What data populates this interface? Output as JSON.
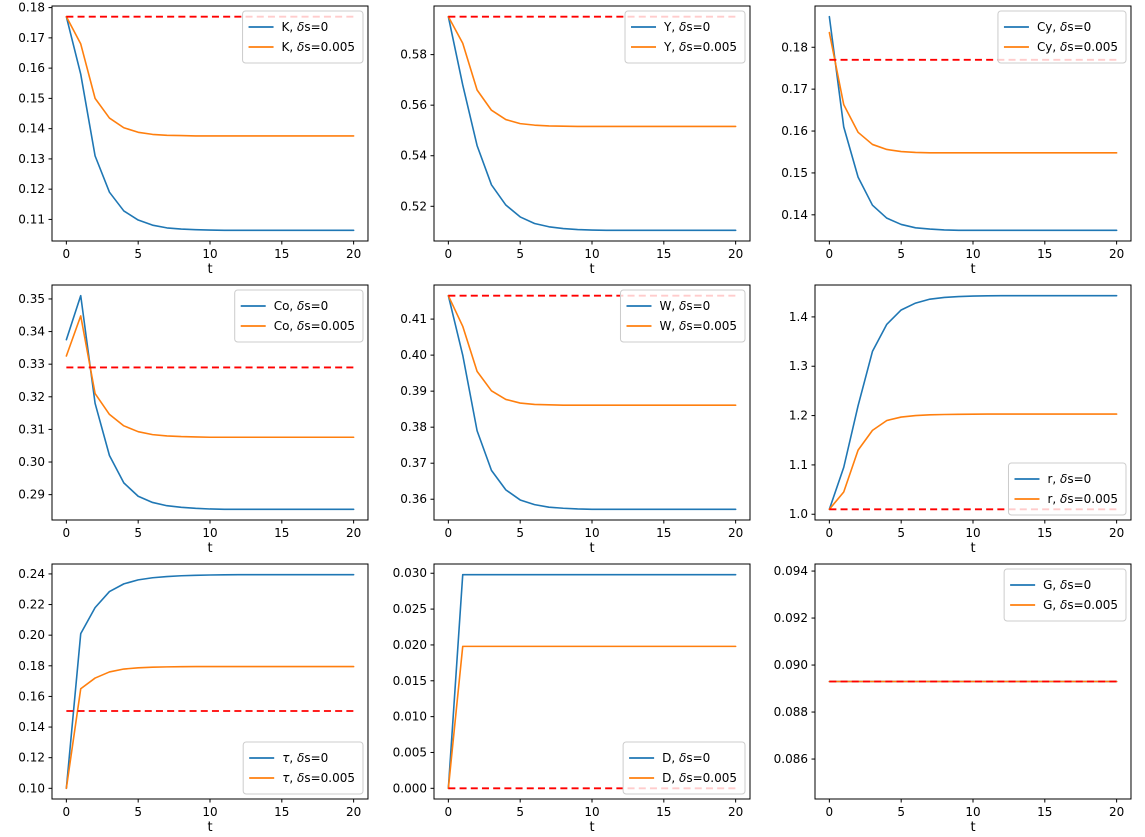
{
  "figure": {
    "background": "#ffffff",
    "text_color": "#000000",
    "spine_color": "#000000",
    "legend_border_color": "#cccccc",
    "legend_bg": "#ffffff",
    "legend_bg_alpha": 0.8
  },
  "chart_data": [
    {
      "type": "line",
      "variable": "K",
      "xlabel": "t",
      "xlim": [
        -1,
        21
      ],
      "xticks": [
        0,
        5,
        10,
        15,
        20
      ],
      "xtick_labels": [
        "0",
        "5",
        "10",
        "15",
        "20"
      ],
      "ylim": [
        0.10287,
        0.18053
      ],
      "yticks": [
        0.11,
        0.12,
        0.13,
        0.14,
        0.15,
        0.16,
        0.17,
        0.18
      ],
      "ytick_labels": [
        "0.11",
        "0.12",
        "0.13",
        "0.14",
        "0.15",
        "0.16",
        "0.17",
        "0.18"
      ],
      "x": [
        0,
        1,
        2,
        3,
        4,
        5,
        6,
        7,
        8,
        9,
        10,
        11,
        12,
        13,
        14,
        15,
        16,
        17,
        18,
        19,
        20
      ],
      "series": [
        {
          "name": "K, δs=0",
          "color": "#1f77b4",
          "values": [
            0.177,
            0.158,
            0.131,
            0.119,
            0.1128,
            0.1098,
            0.1081,
            0.1072,
            0.1068,
            0.1066,
            0.1065,
            0.1064,
            0.1064,
            0.1064,
            0.1064,
            0.1064,
            0.1064,
            0.1064,
            0.1064,
            0.1064,
            0.1064
          ]
        },
        {
          "name": "K, δs=0.005",
          "color": "#ff7f0e",
          "values": [
            0.177,
            0.168,
            0.15,
            0.1435,
            0.1403,
            0.1388,
            0.1381,
            0.1378,
            0.1377,
            0.1376,
            0.1376,
            0.1376,
            0.1376,
            0.1376,
            0.1376,
            0.1376,
            0.1376,
            0.1376,
            0.1376,
            0.1376,
            0.1376
          ]
        }
      ],
      "ref_line": {
        "y": 0.177,
        "color": "#ff0000",
        "linestyle": "dashed",
        "x_start": 0,
        "x_end": 20
      },
      "legend_loc": "upper right"
    },
    {
      "type": "line",
      "variable": "Y",
      "xlabel": "t",
      "xlim": [
        -1,
        21
      ],
      "xticks": [
        0,
        5,
        10,
        15,
        20
      ],
      "xtick_labels": [
        "0",
        "5",
        "10",
        "15",
        "20"
      ],
      "ylim": [
        0.506275,
        0.599225
      ],
      "yticks": [
        0.52,
        0.54,
        0.56,
        0.58
      ],
      "ytick_labels": [
        "0.52",
        "0.54",
        "0.56",
        "0.58"
      ],
      "x": [
        0,
        1,
        2,
        3,
        4,
        5,
        6,
        7,
        8,
        9,
        10,
        11,
        12,
        13,
        14,
        15,
        16,
        17,
        18,
        19,
        20
      ],
      "series": [
        {
          "name": "Y, δs=0",
          "color": "#1f77b4",
          "values": [
            0.595,
            0.568,
            0.544,
            0.5285,
            0.5205,
            0.5158,
            0.5132,
            0.5119,
            0.5112,
            0.5108,
            0.5106,
            0.5105,
            0.5105,
            0.5105,
            0.5105,
            0.5105,
            0.5105,
            0.5105,
            0.5105,
            0.5105,
            0.5105
          ]
        },
        {
          "name": "Y, δs=0.005",
          "color": "#ff7f0e",
          "values": [
            0.595,
            0.5845,
            0.566,
            0.558,
            0.5543,
            0.5527,
            0.5521,
            0.5518,
            0.5517,
            0.5516,
            0.5516,
            0.5516,
            0.5516,
            0.5516,
            0.5516,
            0.5516,
            0.5516,
            0.5516,
            0.5516,
            0.5516,
            0.5516
          ]
        }
      ],
      "ref_line": {
        "y": 0.595,
        "color": "#ff0000",
        "linestyle": "dashed",
        "x_start": 0,
        "x_end": 20
      },
      "legend_loc": "upper right"
    },
    {
      "type": "line",
      "variable": "Cy",
      "xlabel": "t",
      "xlim": [
        -1,
        21
      ],
      "xticks": [
        0,
        5,
        10,
        15,
        20
      ],
      "xtick_labels": [
        "0",
        "5",
        "10",
        "15",
        "20"
      ],
      "ylim": [
        0.13375,
        0.18985
      ],
      "yticks": [
        0.14,
        0.15,
        0.16,
        0.17,
        0.18
      ],
      "ytick_labels": [
        "0.14",
        "0.15",
        "0.16",
        "0.17",
        "0.18"
      ],
      "x": [
        0,
        1,
        2,
        3,
        4,
        5,
        6,
        7,
        8,
        9,
        10,
        11,
        12,
        13,
        14,
        15,
        16,
        17,
        18,
        19,
        20
      ],
      "series": [
        {
          "name": "Cy, δs=0",
          "color": "#1f77b4",
          "values": [
            0.1873,
            0.161,
            0.149,
            0.1423,
            0.1392,
            0.1377,
            0.1369,
            0.1366,
            0.1364,
            0.1363,
            0.1363,
            0.1363,
            0.1363,
            0.1363,
            0.1363,
            0.1363,
            0.1363,
            0.1363,
            0.1363,
            0.1363,
            0.1363
          ]
        },
        {
          "name": "Cy, δs=0.005",
          "color": "#ff7f0e",
          "values": [
            0.1835,
            0.1663,
            0.1597,
            0.1568,
            0.1556,
            0.1551,
            0.1549,
            0.1548,
            0.1548,
            0.1548,
            0.1548,
            0.1548,
            0.1548,
            0.1548,
            0.1548,
            0.1548,
            0.1548,
            0.1548,
            0.1548,
            0.1548,
            0.1548
          ]
        }
      ],
      "ref_line": {
        "y": 0.177,
        "color": "#ff0000",
        "linestyle": "dashed",
        "x_start": 0,
        "x_end": 20
      },
      "legend_loc": "upper right"
    },
    {
      "type": "line",
      "variable": "Co",
      "xlabel": "t",
      "xlim": [
        -1,
        21
      ],
      "xticks": [
        0,
        5,
        10,
        15,
        20
      ],
      "xtick_labels": [
        "0",
        "5",
        "10",
        "15",
        "20"
      ],
      "ylim": [
        0.282225,
        0.354275
      ],
      "yticks": [
        0.29,
        0.3,
        0.31,
        0.32,
        0.33,
        0.34,
        0.35
      ],
      "ytick_labels": [
        "0.29",
        "0.30",
        "0.31",
        "0.32",
        "0.33",
        "0.34",
        "0.35"
      ],
      "x": [
        0,
        1,
        2,
        3,
        4,
        5,
        6,
        7,
        8,
        9,
        10,
        11,
        12,
        13,
        14,
        15,
        16,
        17,
        18,
        19,
        20
      ],
      "series": [
        {
          "name": "Co, δs=0",
          "color": "#1f77b4",
          "values": [
            0.3375,
            0.351,
            0.318,
            0.302,
            0.2936,
            0.2895,
            0.2876,
            0.2866,
            0.2861,
            0.2858,
            0.2856,
            0.2855,
            0.2855,
            0.2855,
            0.2855,
            0.2855,
            0.2855,
            0.2855,
            0.2855,
            0.2855,
            0.2855
          ]
        },
        {
          "name": "Co, δs=0.005",
          "color": "#ff7f0e",
          "values": [
            0.3325,
            0.3448,
            0.321,
            0.3146,
            0.3111,
            0.3093,
            0.3084,
            0.308,
            0.3078,
            0.3077,
            0.3076,
            0.3076,
            0.3076,
            0.3076,
            0.3076,
            0.3076,
            0.3076,
            0.3076,
            0.3076,
            0.3076,
            0.3076
          ]
        }
      ],
      "ref_line": {
        "y": 0.329,
        "color": "#ff0000",
        "linestyle": "dashed",
        "x_start": 0,
        "x_end": 20
      },
      "legend_loc": "upper right"
    },
    {
      "type": "line",
      "variable": "W",
      "xlabel": "t",
      "xlim": [
        -1,
        21
      ],
      "xticks": [
        0,
        5,
        10,
        15,
        20
      ],
      "xtick_labels": [
        "0",
        "5",
        "10",
        "15",
        "20"
      ],
      "ylim": [
        0.354235,
        0.419465
      ],
      "yticks": [
        0.36,
        0.37,
        0.38,
        0.39,
        0.4,
        0.41
      ],
      "ytick_labels": [
        "0.36",
        "0.37",
        "0.38",
        "0.39",
        "0.40",
        "0.41"
      ],
      "x": [
        0,
        1,
        2,
        3,
        4,
        5,
        6,
        7,
        8,
        9,
        10,
        11,
        12,
        13,
        14,
        15,
        16,
        17,
        18,
        19,
        20
      ],
      "series": [
        {
          "name": "W, δs=0",
          "color": "#1f77b4",
          "values": [
            0.4165,
            0.4,
            0.379,
            0.368,
            0.3626,
            0.3598,
            0.3585,
            0.3578,
            0.3575,
            0.3573,
            0.3572,
            0.3572,
            0.3572,
            0.3572,
            0.3572,
            0.3572,
            0.3572,
            0.3572,
            0.3572,
            0.3572,
            0.3572
          ]
        },
        {
          "name": "W, δs=0.005",
          "color": "#ff7f0e",
          "values": [
            0.4165,
            0.408,
            0.3955,
            0.3901,
            0.3877,
            0.3867,
            0.3863,
            0.3862,
            0.3861,
            0.3861,
            0.3861,
            0.3861,
            0.3861,
            0.3861,
            0.3861,
            0.3861,
            0.3861,
            0.3861,
            0.3861,
            0.3861,
            0.3861
          ]
        }
      ],
      "ref_line": {
        "y": 0.4165,
        "color": "#ff0000",
        "linestyle": "dashed",
        "x_start": 0,
        "x_end": 20
      },
      "legend_loc": "upper right"
    },
    {
      "type": "line",
      "variable": "r",
      "xlabel": "t",
      "xlim": [
        -1,
        21
      ],
      "xticks": [
        0,
        5,
        10,
        15,
        20
      ],
      "xtick_labels": [
        "0",
        "5",
        "10",
        "15",
        "20"
      ],
      "ylim": [
        0.98835,
        1.46465
      ],
      "yticks": [
        1.0,
        1.1,
        1.2,
        1.3,
        1.4
      ],
      "ytick_labels": [
        "1.0",
        "1.1",
        "1.2",
        "1.3",
        "1.4"
      ],
      "x": [
        0,
        1,
        2,
        3,
        4,
        5,
        6,
        7,
        8,
        9,
        10,
        11,
        12,
        13,
        14,
        15,
        16,
        17,
        18,
        19,
        20
      ],
      "series": [
        {
          "name": "r, δs=0",
          "color": "#1f77b4",
          "values": [
            1.01,
            1.095,
            1.22,
            1.33,
            1.385,
            1.414,
            1.428,
            1.436,
            1.4395,
            1.4413,
            1.4422,
            1.4427,
            1.443,
            1.443,
            1.443,
            1.443,
            1.443,
            1.443,
            1.443,
            1.443,
            1.443
          ]
        },
        {
          "name": "r, δs=0.005",
          "color": "#ff7f0e",
          "values": [
            1.01,
            1.045,
            1.13,
            1.17,
            1.19,
            1.197,
            1.2,
            1.2015,
            1.2022,
            1.2026,
            1.2028,
            1.203,
            1.203,
            1.203,
            1.203,
            1.203,
            1.203,
            1.203,
            1.203,
            1.203,
            1.203
          ]
        }
      ],
      "ref_line": {
        "y": 1.01,
        "color": "#ff0000",
        "linestyle": "dashed",
        "x_start": 0,
        "x_end": 20
      },
      "legend_loc": "lower right"
    },
    {
      "type": "line",
      "variable": "τ",
      "xlabel": "t",
      "xlim": [
        -1,
        21
      ],
      "xticks": [
        0,
        5,
        10,
        15,
        20
      ],
      "xtick_labels": [
        "0",
        "5",
        "10",
        "15",
        "20"
      ],
      "ylim": [
        0.093025,
        0.246475
      ],
      "yticks": [
        0.1,
        0.12,
        0.14,
        0.16,
        0.18,
        0.2,
        0.22,
        0.24
      ],
      "ytick_labels": [
        "0.10",
        "0.12",
        "0.14",
        "0.16",
        "0.18",
        "0.20",
        "0.22",
        "0.24"
      ],
      "x": [
        0,
        1,
        2,
        3,
        4,
        5,
        6,
        7,
        8,
        9,
        10,
        11,
        12,
        13,
        14,
        15,
        16,
        17,
        18,
        19,
        20
      ],
      "series": [
        {
          "name": "τ, δs=0",
          "color": "#1f77b4",
          "values": [
            0.1,
            0.201,
            0.218,
            0.2285,
            0.2335,
            0.2361,
            0.2375,
            0.2383,
            0.2388,
            0.2391,
            0.2393,
            0.2394,
            0.2395,
            0.2395,
            0.2395,
            0.2395,
            0.2395,
            0.2395,
            0.2395,
            0.2395,
            0.2395
          ]
        },
        {
          "name": "τ, δs=0.005",
          "color": "#ff7f0e",
          "values": [
            0.1,
            0.165,
            0.172,
            0.176,
            0.1779,
            0.1787,
            0.1791,
            0.1793,
            0.1794,
            0.1795,
            0.1795,
            0.1795,
            0.1795,
            0.1795,
            0.1795,
            0.1795,
            0.1795,
            0.1795,
            0.1795,
            0.1795,
            0.1795
          ]
        }
      ],
      "ref_line": {
        "y": 0.1505,
        "color": "#ff0000",
        "linestyle": "dashed",
        "x_start": 0,
        "x_end": 20
      },
      "legend_loc": "lower right"
    },
    {
      "type": "line",
      "variable": "D",
      "xlabel": "t",
      "xlim": [
        -1,
        21
      ],
      "xticks": [
        0,
        5,
        10,
        15,
        20
      ],
      "xtick_labels": [
        "0",
        "5",
        "10",
        "15",
        "20"
      ],
      "ylim": [
        -0.00149,
        0.03129
      ],
      "yticks": [
        0.0,
        0.005,
        0.01,
        0.015,
        0.02,
        0.025,
        0.03
      ],
      "ytick_labels": [
        "0.000",
        "0.005",
        "0.010",
        "0.015",
        "0.020",
        "0.025",
        "0.030"
      ],
      "x": [
        0,
        1,
        2,
        3,
        4,
        5,
        6,
        7,
        8,
        9,
        10,
        11,
        12,
        13,
        14,
        15,
        16,
        17,
        18,
        19,
        20
      ],
      "series": [
        {
          "name": "D, δs=0",
          "color": "#1f77b4",
          "values": [
            0.0,
            0.0298,
            0.0298,
            0.0298,
            0.0298,
            0.0298,
            0.0298,
            0.0298,
            0.0298,
            0.0298,
            0.0298,
            0.0298,
            0.0298,
            0.0298,
            0.0298,
            0.0298,
            0.0298,
            0.0298,
            0.0298,
            0.0298,
            0.0298
          ]
        },
        {
          "name": "D, δs=0.005",
          "color": "#ff7f0e",
          "values": [
            0.0,
            0.0198,
            0.0198,
            0.0198,
            0.0198,
            0.0198,
            0.0198,
            0.0198,
            0.0198,
            0.0198,
            0.0198,
            0.0198,
            0.0198,
            0.0198,
            0.0198,
            0.0198,
            0.0198,
            0.0198,
            0.0198,
            0.0198,
            0.0198
          ]
        }
      ],
      "ref_line": {
        "y": 0.0,
        "color": "#ff0000",
        "linestyle": "dashed",
        "x_start": 0,
        "x_end": 20
      },
      "legend_loc": "lower right"
    },
    {
      "type": "line",
      "variable": "G",
      "xlabel": "t",
      "xlim": [
        -1,
        21
      ],
      "xticks": [
        0,
        5,
        10,
        15,
        20
      ],
      "xtick_labels": [
        "0",
        "5",
        "10",
        "15",
        "20"
      ],
      "ylim": [
        0.0843,
        0.0943
      ],
      "yticks": [
        0.086,
        0.088,
        0.09,
        0.092,
        0.094
      ],
      "ytick_labels": [
        "0.086",
        "0.088",
        "0.090",
        "0.092",
        "0.094"
      ],
      "x": [
        0,
        1,
        2,
        3,
        4,
        5,
        6,
        7,
        8,
        9,
        10,
        11,
        12,
        13,
        14,
        15,
        16,
        17,
        18,
        19,
        20
      ],
      "series": [
        {
          "name": "G, δs=0",
          "color": "#1f77b4",
          "values": [
            0.0893,
            0.0893,
            0.0893,
            0.0893,
            0.0893,
            0.0893,
            0.0893,
            0.0893,
            0.0893,
            0.0893,
            0.0893,
            0.0893,
            0.0893,
            0.0893,
            0.0893,
            0.0893,
            0.0893,
            0.0893,
            0.0893,
            0.0893,
            0.0893
          ]
        },
        {
          "name": "G, δs=0.005",
          "color": "#ff7f0e",
          "values": [
            0.0893,
            0.0893,
            0.0893,
            0.0893,
            0.0893,
            0.0893,
            0.0893,
            0.0893,
            0.0893,
            0.0893,
            0.0893,
            0.0893,
            0.0893,
            0.0893,
            0.0893,
            0.0893,
            0.0893,
            0.0893,
            0.0893,
            0.0893,
            0.0893
          ]
        }
      ],
      "ref_line": {
        "y": 0.0893,
        "color": "#ff0000",
        "linestyle": "dashed",
        "x_start": 0,
        "x_end": 20
      },
      "legend_loc": "upper right"
    }
  ]
}
